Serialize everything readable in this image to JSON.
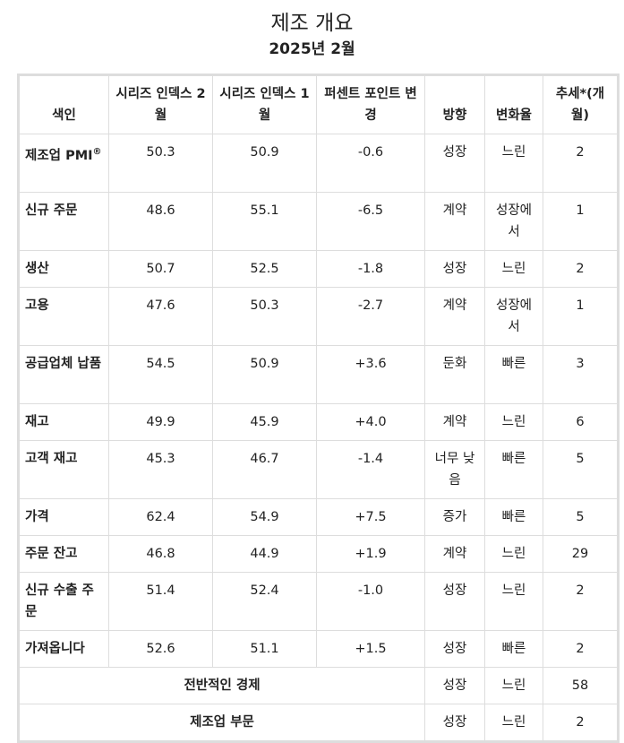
{
  "title": "제조 개요",
  "subtitle": "2025년 2월",
  "headers": [
    "색인",
    "시리즈 인덱스 2월",
    "시리즈 인덱스 1월",
    "퍼센트 포인트 변경",
    "방향",
    "변화율",
    "추세*(개월)"
  ],
  "rows": [
    {
      "name": "제조업 PMI",
      "sup": "®",
      "feb": "50.3",
      "jan": "50.9",
      "change": "-0.6",
      "direction": "성장",
      "rate": "느린",
      "trend": "2"
    },
    {
      "name": "신규 주문",
      "feb": "48.6",
      "jan": "55.1",
      "change": "-6.5",
      "direction": "계약",
      "rate": "성장에서",
      "trend": "1"
    },
    {
      "name": "생산",
      "feb": "50.7",
      "jan": "52.5",
      "change": "-1.8",
      "direction": "성장",
      "rate": "느린",
      "trend": "2"
    },
    {
      "name": "고용",
      "feb": "47.6",
      "jan": "50.3",
      "change": "-2.7",
      "direction": "계약",
      "rate": "성장에서",
      "trend": "1"
    },
    {
      "name": "공급업체 납품",
      "feb": "54.5",
      "jan": "50.9",
      "change": "+3.6",
      "direction": "둔화",
      "rate": "빠른",
      "trend": "3"
    },
    {
      "name": "재고",
      "feb": "49.9",
      "jan": "45.9",
      "change": "+4.0",
      "direction": "계약",
      "rate": "느린",
      "trend": "6"
    },
    {
      "name": "고객 재고",
      "feb": "45.3",
      "jan": "46.7",
      "change": "-1.4",
      "direction": "너무 낮음",
      "rate": "빠른",
      "trend": "5"
    },
    {
      "name": "가격",
      "feb": "62.4",
      "jan": "54.9",
      "change": "+7.5",
      "direction": "증가",
      "rate": "빠른",
      "trend": "5"
    },
    {
      "name": "주문 잔고",
      "feb": "46.8",
      "jan": "44.9",
      "change": "+1.9",
      "direction": "계약",
      "rate": "느린",
      "trend": "29"
    },
    {
      "name": "신규 수출 주문",
      "feb": "51.4",
      "jan": "52.4",
      "change": "-1.0",
      "direction": "성장",
      "rate": "느린",
      "trend": "2"
    },
    {
      "name": "가져옵니다",
      "feb": "52.6",
      "jan": "51.1",
      "change": "+1.5",
      "direction": "성장",
      "rate": "빠른",
      "trend": "2"
    }
  ],
  "summary": [
    {
      "name": "전반적인 경제",
      "direction": "성장",
      "rate": "느린",
      "trend": "58"
    },
    {
      "name": "제조업 부문",
      "direction": "성장",
      "rate": "느린",
      "trend": "2"
    }
  ]
}
